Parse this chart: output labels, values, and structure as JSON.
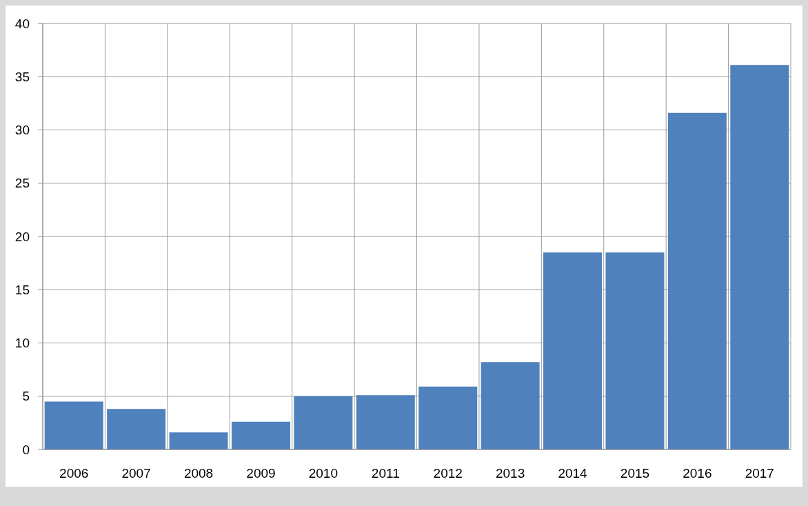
{
  "chart_data": {
    "type": "bar",
    "categories": [
      "2006",
      "2007",
      "2008",
      "2009",
      "2010",
      "2011",
      "2012",
      "2013",
      "2014",
      "2015",
      "2016",
      "2017"
    ],
    "values": [
      4.5,
      3.8,
      1.6,
      2.6,
      5.0,
      5.1,
      5.9,
      8.2,
      18.5,
      18.5,
      31.6,
      36.1
    ],
    "color": "#4f81bd",
    "ylim": [
      0,
      40
    ],
    "yticks": [
      0,
      5,
      10,
      15,
      20,
      25,
      30,
      35,
      40
    ],
    "grid": true
  }
}
